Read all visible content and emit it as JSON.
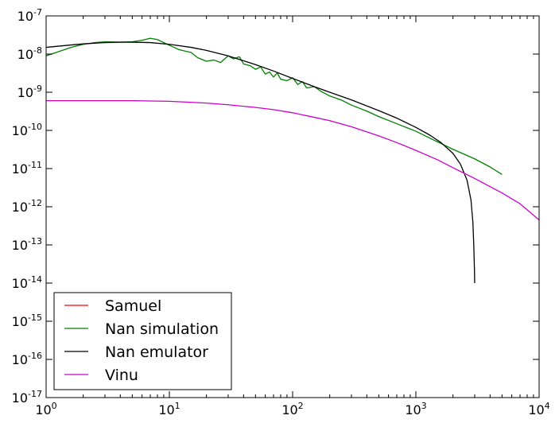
{
  "chart_data": {
    "type": "line",
    "title": "",
    "xlabel": "",
    "ylabel": "",
    "xscale": "log",
    "yscale": "log",
    "xlim": [
      1,
      10000
    ],
    "ylim": [
      1e-17,
      1e-07
    ],
    "grid": false,
    "legend_position": "lower-left",
    "x_ticks": [
      {
        "base": "10",
        "exp": "0",
        "value": 1
      },
      {
        "base": "10",
        "exp": "1",
        "value": 10
      },
      {
        "base": "10",
        "exp": "2",
        "value": 100
      },
      {
        "base": "10",
        "exp": "3",
        "value": 1000
      },
      {
        "base": "10",
        "exp": "4",
        "value": 10000
      }
    ],
    "y_ticks": [
      {
        "base": "10",
        "exp": "-7",
        "value": 1e-07
      },
      {
        "base": "10",
        "exp": "-8",
        "value": 1e-08
      },
      {
        "base": "10",
        "exp": "-9",
        "value": 1e-09
      },
      {
        "base": "10",
        "exp": "-10",
        "value": 1e-10
      },
      {
        "base": "10",
        "exp": "-11",
        "value": 1e-11
      },
      {
        "base": "10",
        "exp": "-12",
        "value": 1e-12
      },
      {
        "base": "10",
        "exp": "-13",
        "value": 1e-13
      },
      {
        "base": "10",
        "exp": "-14",
        "value": 1e-14
      },
      {
        "base": "10",
        "exp": "-15",
        "value": 1e-15
      },
      {
        "base": "10",
        "exp": "-16",
        "value": 1e-16
      },
      {
        "base": "10",
        "exp": "-17",
        "value": 1e-17
      }
    ],
    "series": [
      {
        "name": "Samuel",
        "color": "#ff0000",
        "x": [],
        "y": []
      },
      {
        "name": "Nan simulation",
        "color": "#008000",
        "x": [
          1,
          1.3,
          1.6,
          2,
          2.5,
          3,
          4,
          5,
          6,
          7,
          8,
          10,
          12,
          15,
          17,
          20,
          23,
          26,
          30,
          33,
          37,
          40,
          45,
          50,
          55,
          60,
          65,
          70,
          75,
          80,
          90,
          100,
          110,
          120,
          130,
          150,
          170,
          200,
          250,
          300,
          400,
          500,
          700,
          1000,
          1500,
          2000,
          3000,
          4000,
          5000
        ],
        "y": [
          9e-09,
          1.2e-08,
          1.5e-08,
          1.8e-08,
          2e-08,
          2.1e-08,
          2.05e-08,
          2.1e-08,
          2.3e-08,
          2.6e-08,
          2.4e-08,
          1.7e-08,
          1.3e-08,
          1.1e-08,
          8e-09,
          6.5e-09,
          7e-09,
          6e-09,
          9e-09,
          7.5e-09,
          8.5e-09,
          5.5e-09,
          5e-09,
          4e-09,
          4.6e-09,
          3e-09,
          3.4e-09,
          2.5e-09,
          3.2e-09,
          2.2e-09,
          2e-09,
          2.4e-09,
          1.6e-09,
          1.9e-09,
          1.3e-09,
          1.4e-09,
          1.05e-09,
          8e-10,
          6.2e-10,
          4.6e-10,
          3.2e-10,
          2.3e-10,
          1.5e-10,
          9.5e-11,
          5e-11,
          3.2e-11,
          1.8e-11,
          1.1e-11,
          7e-12
        ]
      },
      {
        "name": "Nan emulator",
        "color": "#000000",
        "x": [
          1,
          1.5,
          2,
          3,
          4,
          5,
          7,
          10,
          15,
          20,
          30,
          50,
          70,
          100,
          150,
          200,
          300,
          500,
          700,
          1000,
          1300,
          1600,
          2000,
          2300,
          2600,
          2800,
          2900,
          2950,
          2990,
          3000
        ],
        "y": [
          1.5e-08,
          1.7e-08,
          1.85e-08,
          2e-08,
          2.05e-08,
          2.05e-08,
          2e-08,
          1.8e-08,
          1.5e-08,
          1.25e-08,
          9e-09,
          5.3e-09,
          3.6e-09,
          2.3e-09,
          1.4e-09,
          1e-09,
          6.3e-10,
          3.3e-10,
          2.1e-10,
          1.2e-10,
          7.5e-11,
          4.8e-11,
          2.5e-11,
          1.3e-11,
          5e-12,
          1.5e-12,
          4e-13,
          1e-13,
          2e-14,
          1e-14
        ]
      },
      {
        "name": "Vinu",
        "color": "#cc00cc",
        "x": [
          1,
          2,
          5,
          10,
          20,
          30,
          50,
          70,
          100,
          150,
          200,
          300,
          500,
          700,
          1000,
          1500,
          2000,
          3000,
          5000,
          7000,
          10000
        ],
        "y": [
          6e-10,
          6e-10,
          6e-10,
          5.8e-10,
          5.2e-10,
          4.7e-10,
          4e-10,
          3.5e-10,
          2.9e-10,
          2.2e-10,
          1.8e-10,
          1.25e-10,
          7.2e-11,
          4.8e-11,
          3e-11,
          1.7e-11,
          1.05e-11,
          5.5e-12,
          2.3e-12,
          1.2e-12,
          4.5e-13
        ]
      }
    ]
  }
}
